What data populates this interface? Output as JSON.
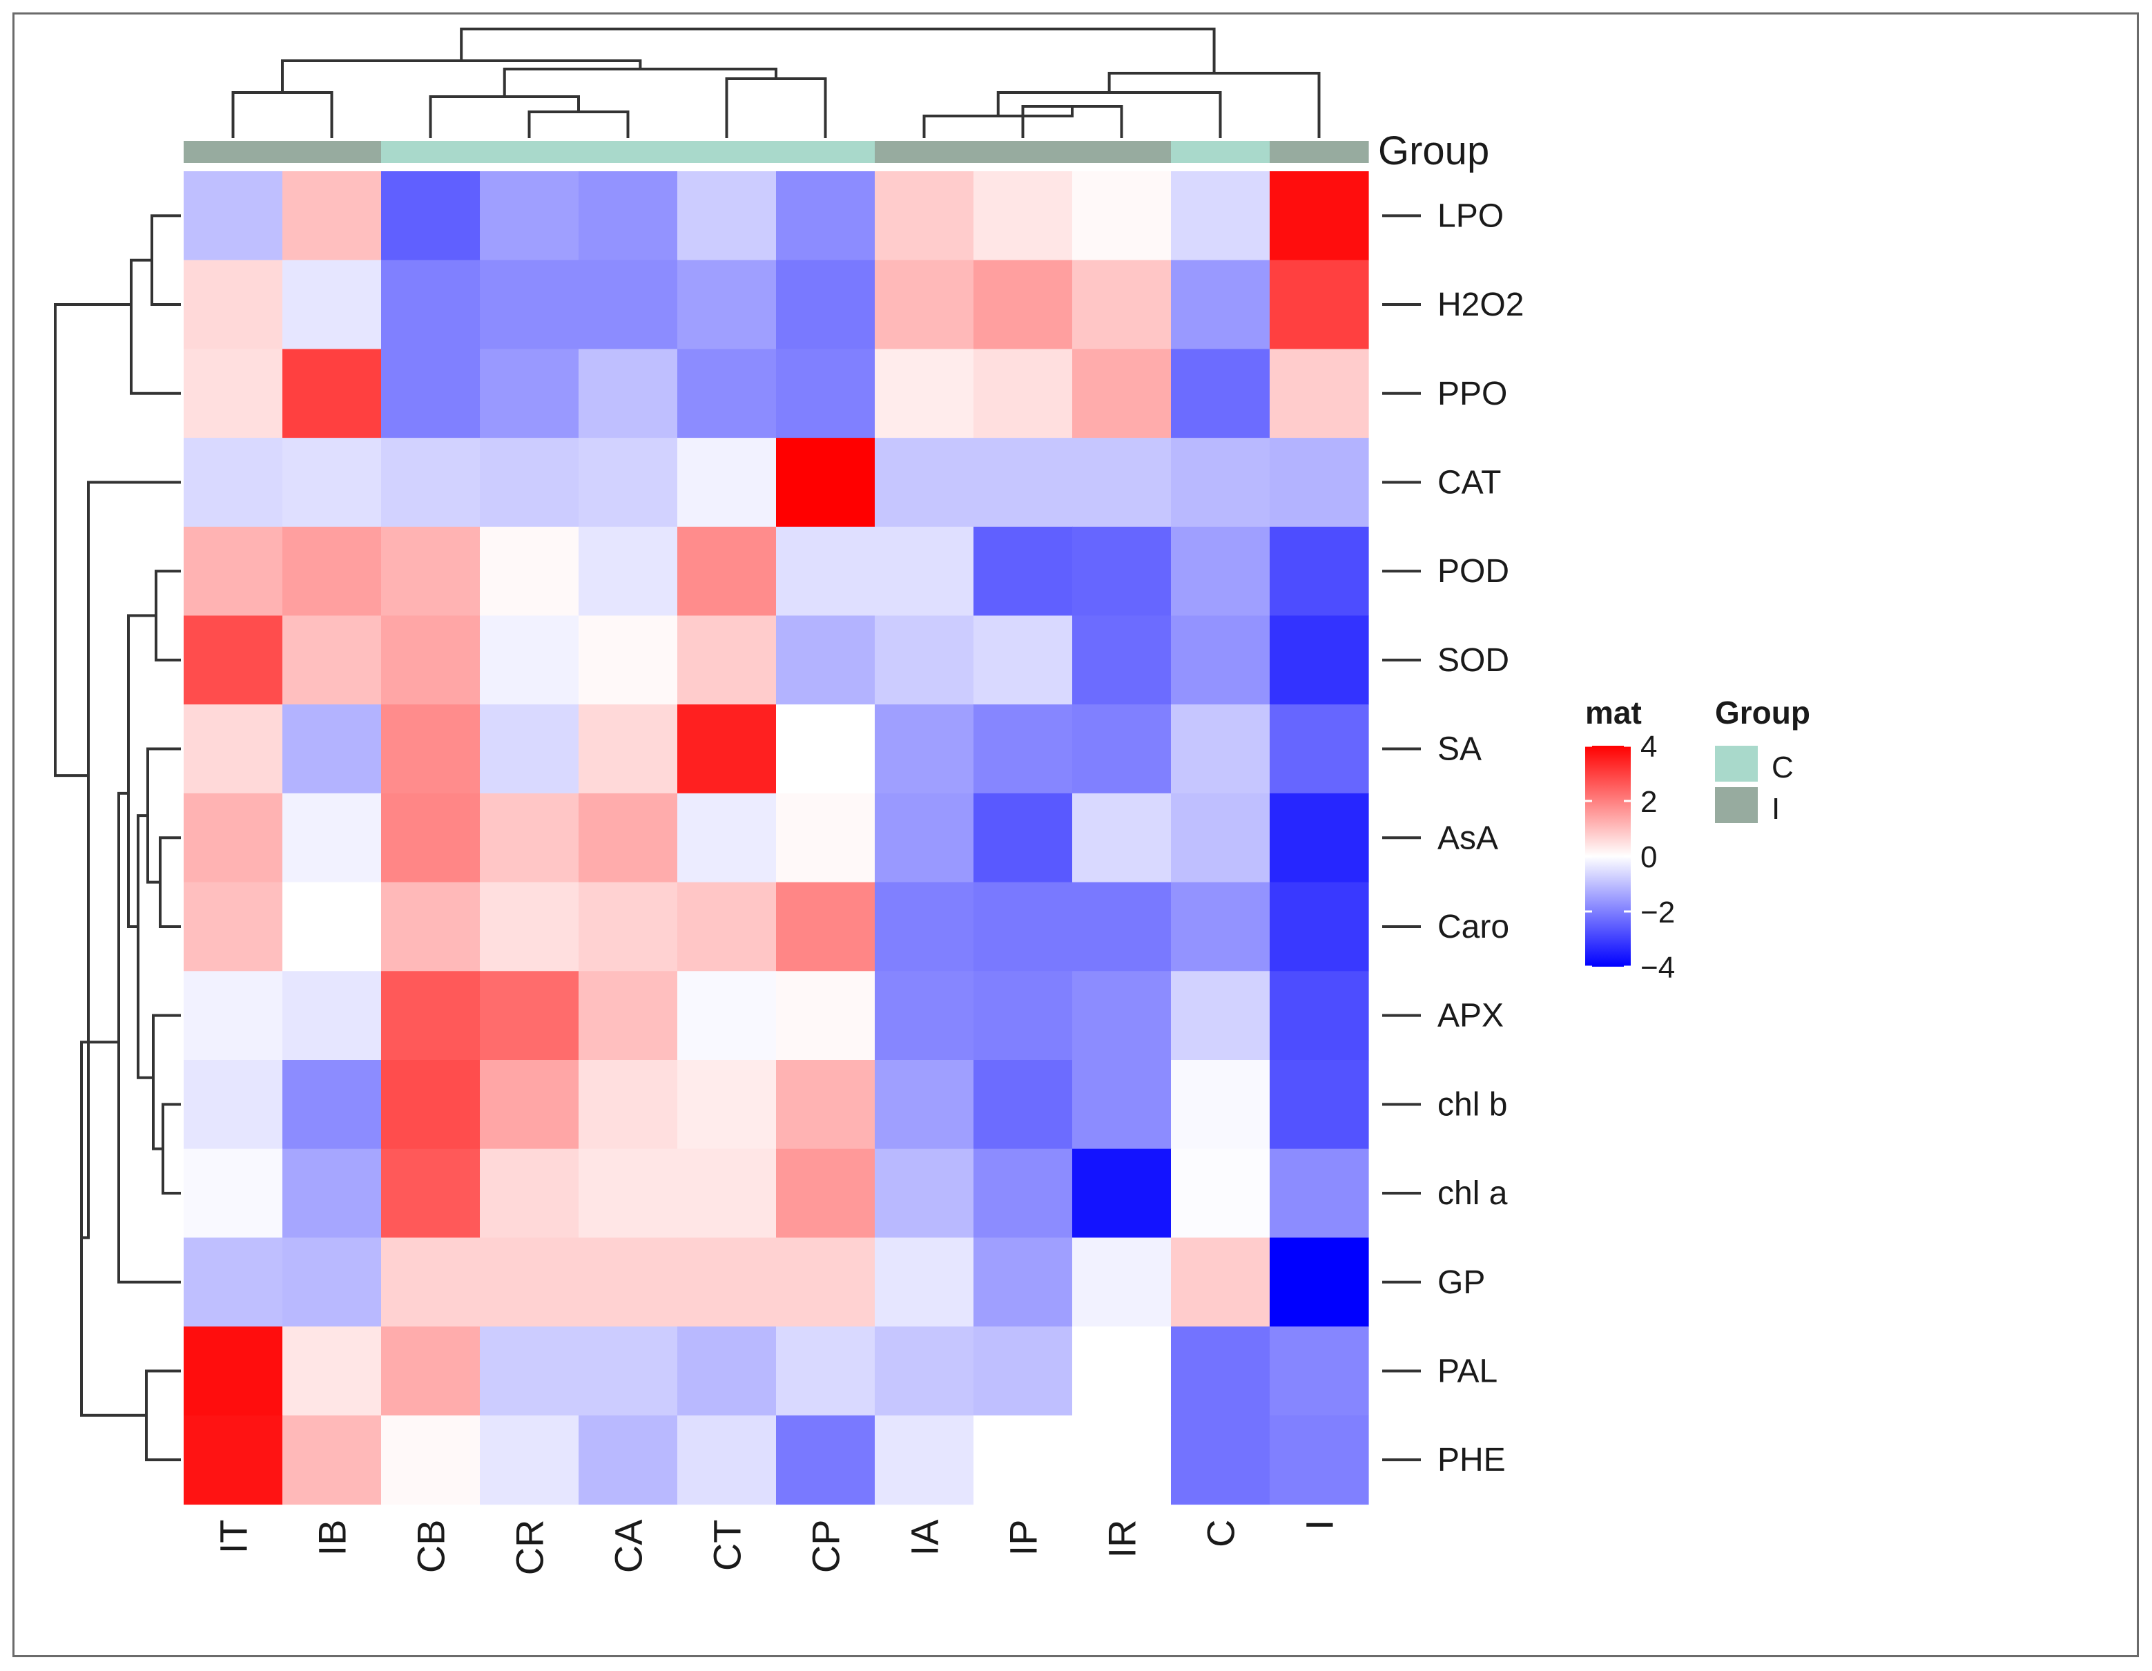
{
  "chart_data": {
    "type": "heatmap",
    "columns": [
      "IT",
      "IB",
      "CB",
      "CR",
      "CA",
      "CT",
      "CP",
      "IA",
      "IP",
      "IR",
      "C",
      "I"
    ],
    "column_groups": [
      "I",
      "I",
      "C",
      "C",
      "C",
      "C",
      "C",
      "I",
      "I",
      "I",
      "C",
      "I"
    ],
    "rows": [
      "LPO",
      "H2O2",
      "PPO",
      "CAT",
      "POD",
      "SOD",
      "SA",
      "AsA",
      "Caro",
      "APX",
      "chl b",
      "chl a",
      "GP",
      "PAL",
      "PHE"
    ],
    "values": [
      [
        -1.0,
        1.0,
        -2.5,
        -1.5,
        -1.7,
        -0.8,
        -1.8,
        0.8,
        0.4,
        0.1,
        -0.6,
        3.8
      ],
      [
        0.6,
        -0.4,
        -2.0,
        -1.8,
        -1.8,
        -1.5,
        -2.1,
        1.1,
        1.5,
        0.9,
        -1.6,
        3.0
      ],
      [
        0.5,
        3.0,
        -2.0,
        -1.6,
        -1.0,
        -1.8,
        -2.0,
        0.3,
        0.5,
        1.3,
        -2.3,
        0.8
      ],
      [
        -0.6,
        -0.5,
        -0.7,
        -0.8,
        -0.7,
        -0.2,
        4.0,
        -0.9,
        -0.9,
        -0.9,
        -1.1,
        -1.2
      ],
      [
        1.2,
        1.5,
        1.2,
        0.1,
        -0.4,
        1.8,
        -0.5,
        -0.5,
        -2.5,
        -2.4,
        -1.5,
        -2.8
      ],
      [
        2.8,
        1.0,
        1.4,
        -0.2,
        0.1,
        0.8,
        -1.2,
        -0.8,
        -0.6,
        -2.3,
        -1.7,
        -3.2
      ],
      [
        0.6,
        -1.2,
        1.8,
        -0.6,
        0.6,
        3.5,
        0.0,
        -1.5,
        -1.9,
        -2.0,
        -0.9,
        -2.4
      ],
      [
        1.2,
        -0.2,
        1.9,
        0.9,
        1.3,
        -0.3,
        0.1,
        -1.6,
        -2.6,
        -0.6,
        -1.0,
        -3.4
      ],
      [
        1.0,
        0.0,
        1.1,
        0.5,
        0.7,
        0.9,
        1.9,
        -2.0,
        -2.1,
        -2.1,
        -1.7,
        -3.1
      ],
      [
        -0.2,
        -0.4,
        2.6,
        2.3,
        1.0,
        -0.1,
        0.1,
        -1.9,
        -2.0,
        -1.8,
        -0.7,
        -2.8
      ],
      [
        -0.4,
        -1.8,
        2.8,
        1.4,
        0.5,
        0.3,
        1.2,
        -1.5,
        -2.3,
        -1.8,
        -0.1,
        -2.7
      ],
      [
        -0.1,
        -1.4,
        2.6,
        0.6,
        0.4,
        0.4,
        1.6,
        -1.1,
        -1.8,
        -3.7,
        -0.05,
        -1.8
      ],
      [
        -1.0,
        -1.1,
        0.7,
        0.7,
        0.7,
        0.7,
        0.7,
        -0.4,
        -1.5,
        -0.2,
        0.8,
        -4.0
      ],
      [
        3.8,
        0.4,
        1.3,
        -0.8,
        -0.8,
        -1.1,
        -0.6,
        -0.9,
        -1.0,
        0.0,
        -2.2,
        -1.9
      ],
      [
        3.7,
        1.1,
        0.1,
        -0.4,
        -1.1,
        -0.5,
        -2.1,
        -0.4,
        0.0,
        0.0,
        -2.2,
        -2.0
      ]
    ],
    "color_scale": {
      "min": -4,
      "max": 4,
      "low_color": "#0000ff",
      "mid_color": "#ffffff",
      "high_color": "#ff0000"
    },
    "group_colors": {
      "C": "#a9d9cb",
      "I": "#97ab9f"
    },
    "annotation_label": "Group",
    "legend": {
      "mat_title": "mat",
      "ticks": [
        "4",
        "2",
        "0",
        "−2",
        "−4"
      ],
      "tick_values": [
        4,
        2,
        0,
        -2,
        -4
      ],
      "group_title": "Group",
      "group_items": [
        "C",
        "I"
      ]
    }
  }
}
